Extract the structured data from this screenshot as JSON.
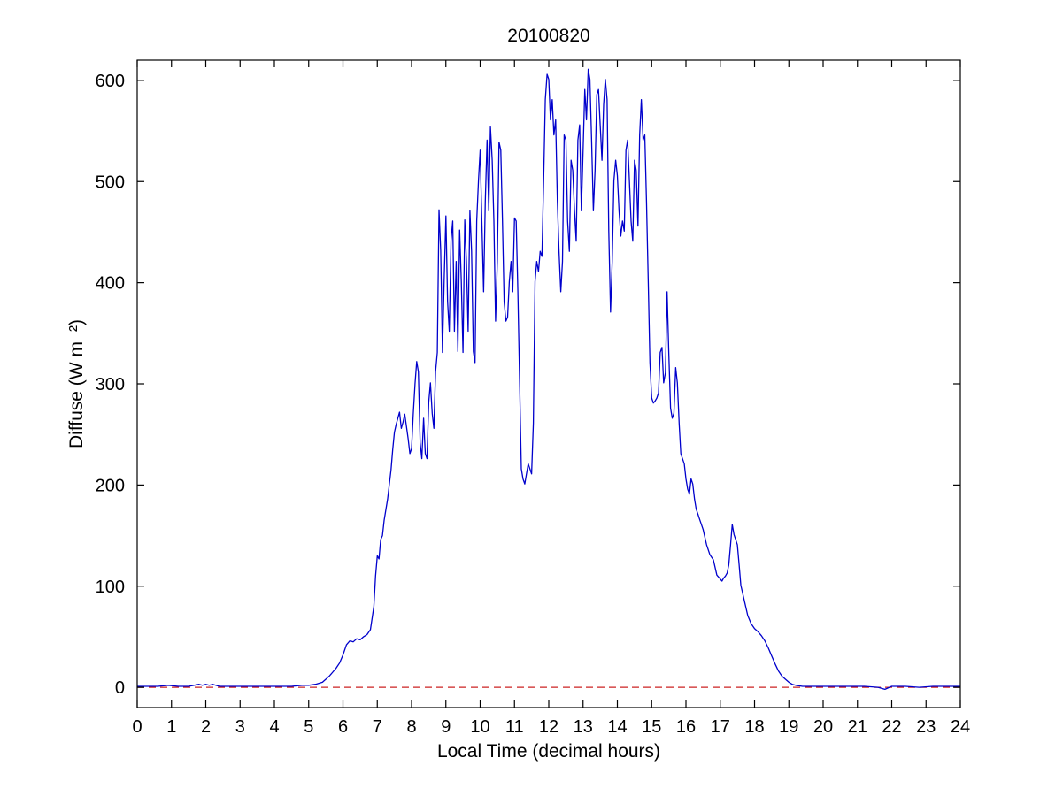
{
  "figure": {
    "background": "#ffffff"
  },
  "chart_data": {
    "type": "line",
    "title": "20100820",
    "xlabel": "Local Time (decimal hours)",
    "ylabel": "Diffuse (W m⁻²)",
    "xlim": [
      0,
      24
    ],
    "ylim": [
      -20,
      620
    ],
    "xticks": [
      0,
      1,
      2,
      3,
      4,
      5,
      6,
      7,
      8,
      9,
      10,
      11,
      12,
      13,
      14,
      15,
      16,
      17,
      18,
      19,
      20,
      21,
      22,
      23,
      24
    ],
    "yticks": [
      0,
      100,
      200,
      300,
      400,
      500,
      600
    ],
    "grid": false,
    "legend": null,
    "colors": {
      "diffuse": "#0000cc",
      "zero_line": "#cc2222",
      "axes": "#000000"
    },
    "series": [
      {
        "name": "diffuse",
        "color": "#0000cc",
        "style": "solid",
        "points": [
          [
            0,
            1
          ],
          [
            0.3,
            1
          ],
          [
            0.6,
            1
          ],
          [
            0.9,
            2
          ],
          [
            1.2,
            1
          ],
          [
            1.5,
            1
          ],
          [
            1.8,
            3
          ],
          [
            1.9,
            2
          ],
          [
            2.0,
            3
          ],
          [
            2.1,
            2
          ],
          [
            2.2,
            3
          ],
          [
            2.4,
            1
          ],
          [
            2.7,
            1
          ],
          [
            3.0,
            1
          ],
          [
            3.3,
            1
          ],
          [
            3.6,
            1
          ],
          [
            3.9,
            1
          ],
          [
            4.2,
            1
          ],
          [
            4.5,
            1
          ],
          [
            4.8,
            2
          ],
          [
            5.0,
            2
          ],
          [
            5.2,
            3
          ],
          [
            5.4,
            5
          ],
          [
            5.5,
            8
          ],
          [
            5.6,
            11
          ],
          [
            5.7,
            15
          ],
          [
            5.8,
            19
          ],
          [
            5.9,
            24
          ],
          [
            6.0,
            32
          ],
          [
            6.1,
            42
          ],
          [
            6.2,
            46
          ],
          [
            6.3,
            45
          ],
          [
            6.4,
            48
          ],
          [
            6.5,
            47
          ],
          [
            6.6,
            50
          ],
          [
            6.7,
            52
          ],
          [
            6.8,
            57
          ],
          [
            6.9,
            80
          ],
          [
            6.95,
            110
          ],
          [
            7.0,
            130
          ],
          [
            7.05,
            127
          ],
          [
            7.1,
            146
          ],
          [
            7.15,
            150
          ],
          [
            7.2,
            165
          ],
          [
            7.3,
            186
          ],
          [
            7.4,
            215
          ],
          [
            7.45,
            235
          ],
          [
            7.5,
            252
          ],
          [
            7.55,
            260
          ],
          [
            7.6,
            266
          ],
          [
            7.65,
            272
          ],
          [
            7.7,
            256
          ],
          [
            7.75,
            262
          ],
          [
            7.8,
            270
          ],
          [
            7.85,
            258
          ],
          [
            7.9,
            246
          ],
          [
            7.95,
            231
          ],
          [
            8.0,
            236
          ],
          [
            8.05,
            270
          ],
          [
            8.1,
            300
          ],
          [
            8.15,
            322
          ],
          [
            8.2,
            312
          ],
          [
            8.25,
            242
          ],
          [
            8.3,
            226
          ],
          [
            8.35,
            266
          ],
          [
            8.4,
            231
          ],
          [
            8.45,
            226
          ],
          [
            8.5,
            282
          ],
          [
            8.55,
            301
          ],
          [
            8.6,
            271
          ],
          [
            8.65,
            256
          ],
          [
            8.7,
            312
          ],
          [
            8.75,
            331
          ],
          [
            8.8,
            472
          ],
          [
            8.85,
            432
          ],
          [
            8.9,
            331
          ],
          [
            8.95,
            402
          ],
          [
            9.0,
            466
          ],
          [
            9.05,
            381
          ],
          [
            9.1,
            352
          ],
          [
            9.15,
            442
          ],
          [
            9.2,
            461
          ],
          [
            9.25,
            352
          ],
          [
            9.3,
            421
          ],
          [
            9.35,
            332
          ],
          [
            9.4,
            452
          ],
          [
            9.45,
            401
          ],
          [
            9.5,
            331
          ],
          [
            9.55,
            462
          ],
          [
            9.6,
            421
          ],
          [
            9.65,
            352
          ],
          [
            9.7,
            471
          ],
          [
            9.75,
            431
          ],
          [
            9.8,
            332
          ],
          [
            9.85,
            321
          ],
          [
            9.9,
            461
          ],
          [
            9.95,
            501
          ],
          [
            10.0,
            531
          ],
          [
            10.05,
            461
          ],
          [
            10.1,
            391
          ],
          [
            10.15,
            481
          ],
          [
            10.2,
            541
          ],
          [
            10.25,
            471
          ],
          [
            10.3,
            554
          ],
          [
            10.35,
            521
          ],
          [
            10.4,
            461
          ],
          [
            10.45,
            362
          ],
          [
            10.5,
            421
          ],
          [
            10.55,
            539
          ],
          [
            10.6,
            531
          ],
          [
            10.65,
            461
          ],
          [
            10.7,
            381
          ],
          [
            10.75,
            362
          ],
          [
            10.8,
            366
          ],
          [
            10.85,
            401
          ],
          [
            10.9,
            421
          ],
          [
            10.95,
            391
          ],
          [
            11.0,
            464
          ],
          [
            11.05,
            461
          ],
          [
            11.1,
            391
          ],
          [
            11.15,
            301
          ],
          [
            11.2,
            216
          ],
          [
            11.25,
            206
          ],
          [
            11.3,
            201
          ],
          [
            11.35,
            211
          ],
          [
            11.4,
            221
          ],
          [
            11.45,
            216
          ],
          [
            11.5,
            211
          ],
          [
            11.55,
            261
          ],
          [
            11.6,
            401
          ],
          [
            11.65,
            421
          ],
          [
            11.7,
            411
          ],
          [
            11.75,
            431
          ],
          [
            11.8,
            426
          ],
          [
            11.85,
            501
          ],
          [
            11.9,
            581
          ],
          [
            11.95,
            606
          ],
          [
            12.0,
            601
          ],
          [
            12.05,
            561
          ],
          [
            12.1,
            581
          ],
          [
            12.15,
            546
          ],
          [
            12.2,
            561
          ],
          [
            12.25,
            481
          ],
          [
            12.3,
            431
          ],
          [
            12.35,
            391
          ],
          [
            12.4,
            421
          ],
          [
            12.45,
            546
          ],
          [
            12.5,
            541
          ],
          [
            12.55,
            461
          ],
          [
            12.6,
            431
          ],
          [
            12.65,
            521
          ],
          [
            12.7,
            511
          ],
          [
            12.75,
            471
          ],
          [
            12.8,
            441
          ],
          [
            12.85,
            541
          ],
          [
            12.9,
            556
          ],
          [
            12.95,
            471
          ],
          [
            13.0,
            531
          ],
          [
            13.05,
            591
          ],
          [
            13.1,
            561
          ],
          [
            13.15,
            611
          ],
          [
            13.2,
            601
          ],
          [
            13.25,
            541
          ],
          [
            13.3,
            471
          ],
          [
            13.35,
            511
          ],
          [
            13.4,
            586
          ],
          [
            13.45,
            591
          ],
          [
            13.5,
            556
          ],
          [
            13.55,
            521
          ],
          [
            13.6,
            576
          ],
          [
            13.65,
            601
          ],
          [
            13.7,
            581
          ],
          [
            13.75,
            451
          ],
          [
            13.8,
            371
          ],
          [
            13.85,
            421
          ],
          [
            13.9,
            501
          ],
          [
            13.95,
            521
          ],
          [
            14.0,
            506
          ],
          [
            14.05,
            471
          ],
          [
            14.1,
            446
          ],
          [
            14.15,
            461
          ],
          [
            14.2,
            451
          ],
          [
            14.25,
            531
          ],
          [
            14.3,
            541
          ],
          [
            14.35,
            501
          ],
          [
            14.4,
            461
          ],
          [
            14.45,
            441
          ],
          [
            14.5,
            521
          ],
          [
            14.55,
            511
          ],
          [
            14.6,
            456
          ],
          [
            14.65,
            546
          ],
          [
            14.7,
            581
          ],
          [
            14.75,
            541
          ],
          [
            14.8,
            546
          ],
          [
            14.85,
            481
          ],
          [
            14.9,
            401
          ],
          [
            14.95,
            321
          ],
          [
            15.0,
            286
          ],
          [
            15.05,
            281
          ],
          [
            15.1,
            283
          ],
          [
            15.15,
            286
          ],
          [
            15.2,
            291
          ],
          [
            15.25,
            331
          ],
          [
            15.3,
            336
          ],
          [
            15.35,
            301
          ],
          [
            15.4,
            311
          ],
          [
            15.45,
            391
          ],
          [
            15.5,
            331
          ],
          [
            15.55,
            276
          ],
          [
            15.6,
            266
          ],
          [
            15.65,
            271
          ],
          [
            15.7,
            316
          ],
          [
            15.75,
            301
          ],
          [
            15.8,
            261
          ],
          [
            15.85,
            231
          ],
          [
            15.9,
            226
          ],
          [
            15.95,
            221
          ],
          [
            16.0,
            206
          ],
          [
            16.05,
            196
          ],
          [
            16.1,
            191
          ],
          [
            16.15,
            206
          ],
          [
            16.2,
            201
          ],
          [
            16.25,
            186
          ],
          [
            16.3,
            176
          ],
          [
            16.35,
            171
          ],
          [
            16.4,
            166
          ],
          [
            16.5,
            156
          ],
          [
            16.6,
            141
          ],
          [
            16.7,
            131
          ],
          [
            16.8,
            126
          ],
          [
            16.9,
            111
          ],
          [
            17.0,
            107
          ],
          [
            17.05,
            105
          ],
          [
            17.1,
            108
          ],
          [
            17.15,
            110
          ],
          [
            17.2,
            113
          ],
          [
            17.25,
            121
          ],
          [
            17.3,
            141
          ],
          [
            17.35,
            161
          ],
          [
            17.4,
            151
          ],
          [
            17.45,
            146
          ],
          [
            17.5,
            141
          ],
          [
            17.55,
            121
          ],
          [
            17.6,
            101
          ],
          [
            17.7,
            86
          ],
          [
            17.8,
            71
          ],
          [
            17.9,
            63
          ],
          [
            18.0,
            58
          ],
          [
            18.1,
            55
          ],
          [
            18.2,
            51
          ],
          [
            18.3,
            46
          ],
          [
            18.4,
            39
          ],
          [
            18.5,
            31
          ],
          [
            18.6,
            23
          ],
          [
            18.7,
            16
          ],
          [
            18.8,
            11
          ],
          [
            18.9,
            8
          ],
          [
            19.0,
            5
          ],
          [
            19.1,
            3
          ],
          [
            19.2,
            2
          ],
          [
            19.4,
            1
          ],
          [
            19.6,
            1
          ],
          [
            19.8,
            1
          ],
          [
            20.0,
            1
          ],
          [
            20.4,
            1
          ],
          [
            20.8,
            1
          ],
          [
            21.2,
            1
          ],
          [
            21.6,
            0
          ],
          [
            21.8,
            -2
          ],
          [
            22.0,
            1
          ],
          [
            22.4,
            1
          ],
          [
            22.8,
            0
          ],
          [
            23.2,
            1
          ],
          [
            23.6,
            1
          ],
          [
            24.0,
            1
          ]
        ]
      },
      {
        "name": "zero-reference",
        "color": "#cc2222",
        "style": "dashed",
        "points": [
          [
            0,
            0
          ],
          [
            24,
            0
          ]
        ]
      }
    ]
  }
}
